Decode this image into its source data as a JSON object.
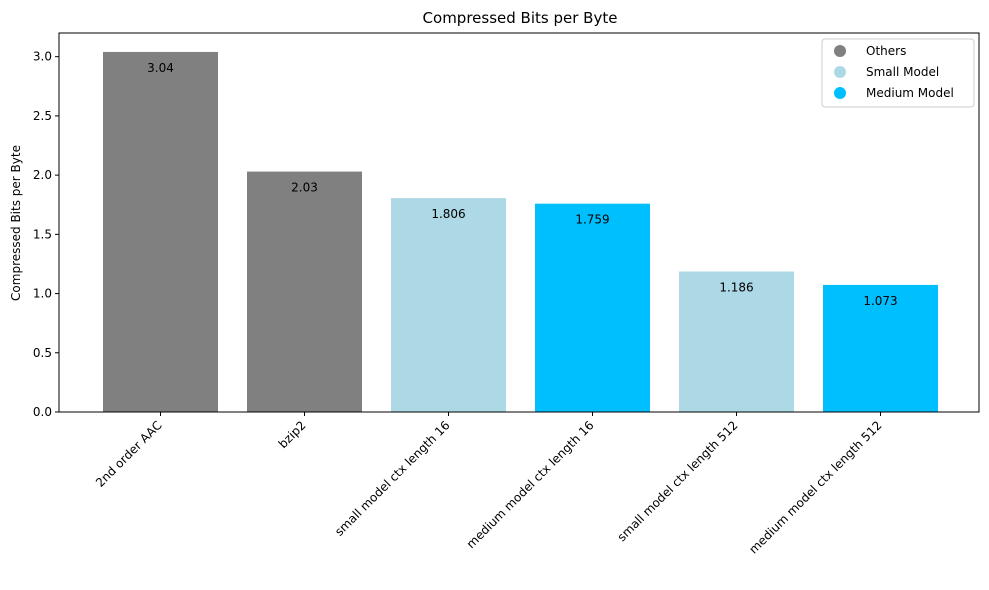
{
  "chart_data": {
    "type": "bar",
    "title": "Compressed Bits per Byte",
    "xlabel": "",
    "ylabel": "Compressed Bits per Byte",
    "ylim": [
      0,
      3.2
    ],
    "yticks": [
      0.0,
      0.5,
      1.0,
      1.5,
      2.0,
      2.5,
      3.0
    ],
    "ytick_labels": [
      "0.0",
      "0.5",
      "1.0",
      "1.5",
      "2.0",
      "2.5",
      "3.0"
    ],
    "grid": false,
    "legend_position": "top-right",
    "categories": [
      "2nd order AAC",
      "bzip2",
      "small model ctx length 16",
      "medium model ctx length 16",
      "small model ctx length 512",
      "medium model ctx length 512"
    ],
    "values": [
      3.04,
      2.03,
      1.806,
      1.759,
      1.186,
      1.073
    ],
    "value_labels": [
      "3.04",
      "2.03",
      "1.806",
      "1.759",
      "1.186",
      "1.073"
    ],
    "groups": [
      "Others",
      "Others",
      "Small Model",
      "Medium Model",
      "Small Model",
      "Medium Model"
    ],
    "legend": [
      {
        "name": "Others",
        "color": "#808080"
      },
      {
        "name": "Small Model",
        "color": "#add8e6"
      },
      {
        "name": "Medium Model",
        "color": "#00bfff"
      }
    ]
  }
}
